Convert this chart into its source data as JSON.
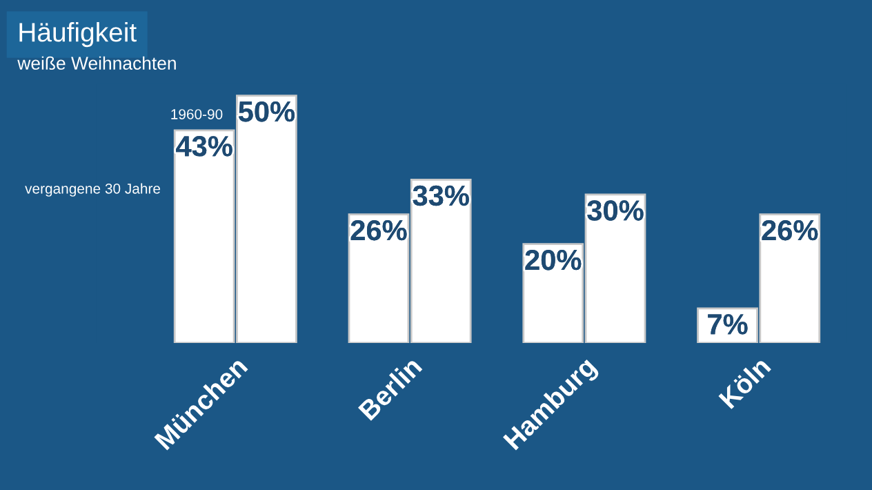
{
  "chart_data": {
    "type": "bar",
    "title": "Häufigkeit",
    "subtitle": "weiße Weihnachten",
    "categories": [
      "München",
      "Berlin",
      "Hamburg",
      "Köln"
    ],
    "series": [
      {
        "name": "vergangene 30 Jahre",
        "color": "#ffffff",
        "values": [
          43,
          26,
          20,
          7
        ],
        "value_labels": [
          "43%",
          "26%",
          "20%",
          "7%"
        ]
      },
      {
        "name": "1960-90",
        "color": "#ffffff",
        "values": [
          50,
          33,
          30,
          26
        ],
        "value_labels": [
          "50%",
          "33%",
          "30%",
          "26%"
        ]
      }
    ],
    "legend": false,
    "grid": false
  }
}
